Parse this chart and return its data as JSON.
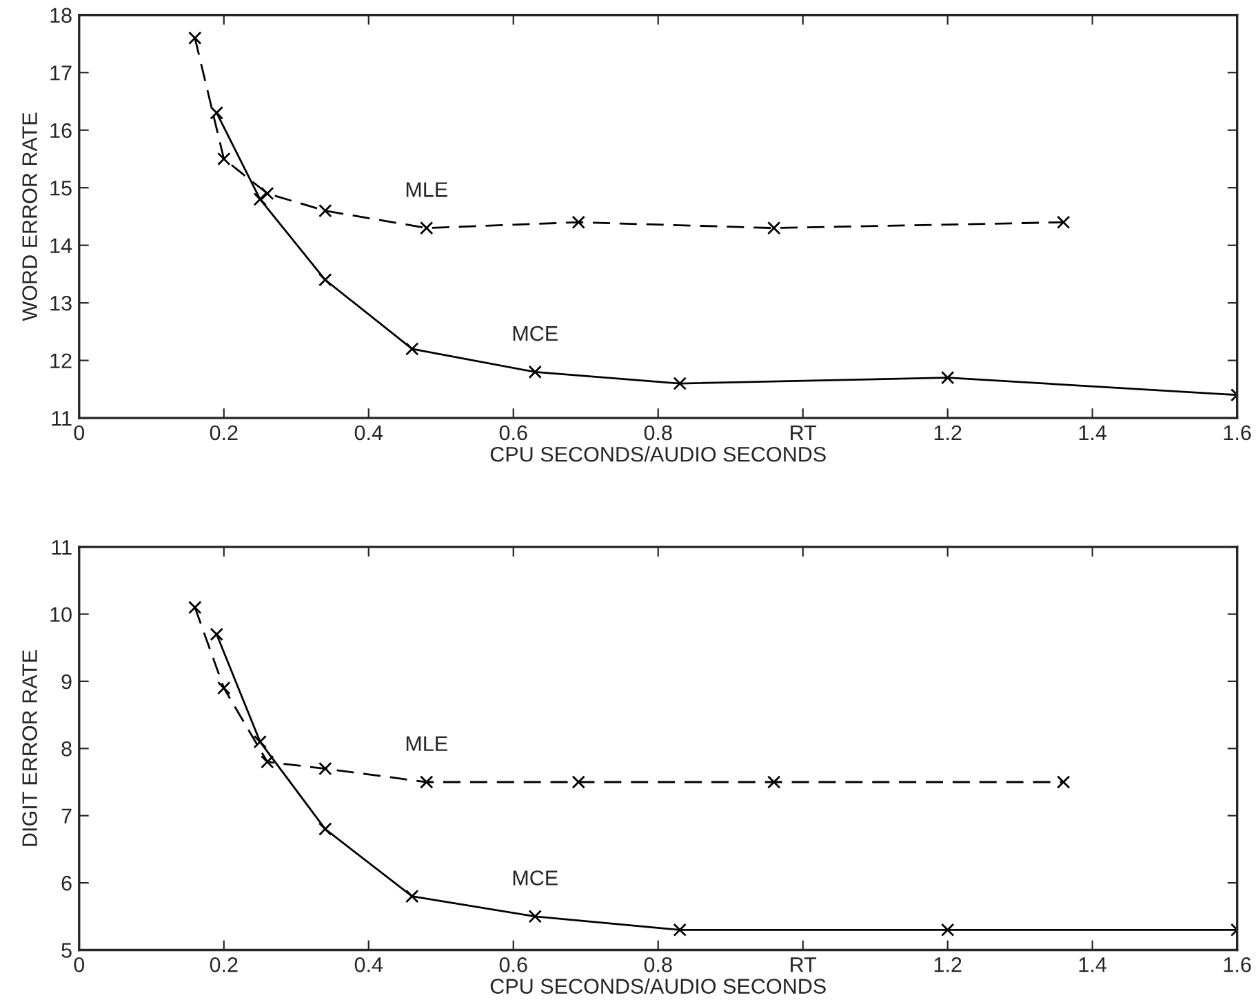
{
  "chart_data": [
    {
      "type": "line",
      "xlabel": "CPU SECONDS/AUDIO SECONDS",
      "ylabel": "WORD ERROR RATE",
      "xlim": [
        0,
        1.6
      ],
      "ylim": [
        11,
        18
      ],
      "xticks": [
        0,
        0.2,
        0.4,
        0.6,
        0.8,
        {
          "value": 1,
          "label": "RT"
        },
        1.2,
        1.4,
        1.6
      ],
      "yticks": [
        11,
        12,
        13,
        14,
        15,
        16,
        17,
        18
      ],
      "grid": false,
      "legend": false,
      "marker": "cross",
      "series": [
        {
          "name": "MLE",
          "color": "#000000",
          "line_style": "dashed",
          "x": [
            0.16,
            0.2,
            0.26,
            0.34,
            0.48,
            0.69,
            0.96,
            1.36
          ],
          "values": [
            17.6,
            15.5,
            14.9,
            14.6,
            14.3,
            14.4,
            14.3,
            14.4
          ]
        },
        {
          "name": "MCE",
          "color": "#000000",
          "line_style": "solid",
          "x": [
            0.19,
            0.25,
            0.34,
            0.46,
            0.63,
            0.83,
            1.2,
            1.6
          ],
          "values": [
            16.3,
            14.8,
            13.4,
            12.2,
            11.8,
            11.6,
            11.7,
            11.4
          ]
        }
      ]
    },
    {
      "type": "line",
      "xlabel": "CPU SECONDS/AUDIO SECONDS",
      "ylabel": "DIGIT ERROR RATE",
      "xlim": [
        0,
        1.6
      ],
      "ylim": [
        5,
        11
      ],
      "xticks": [
        0,
        0.2,
        0.4,
        0.6,
        0.8,
        {
          "value": 1,
          "label": "RT"
        },
        1.2,
        1.4,
        1.6
      ],
      "yticks": [
        5,
        6,
        7,
        8,
        9,
        10,
        11
      ],
      "grid": false,
      "legend": false,
      "marker": "cross",
      "series": [
        {
          "name": "MLE",
          "color": "#000000",
          "line_style": "dashed",
          "x": [
            0.16,
            0.2,
            0.26,
            0.34,
            0.48,
            0.69,
            0.96,
            1.36
          ],
          "values": [
            10.1,
            8.9,
            7.8,
            7.7,
            7.5,
            7.5,
            7.5,
            7.5
          ]
        },
        {
          "name": "MCE",
          "color": "#000000",
          "line_style": "solid",
          "x": [
            0.19,
            0.25,
            0.34,
            0.46,
            0.63,
            0.83,
            1.2,
            1.6
          ],
          "values": [
            9.7,
            8.1,
            6.8,
            5.8,
            5.5,
            5.3,
            5.3,
            5.3
          ]
        }
      ]
    }
  ]
}
